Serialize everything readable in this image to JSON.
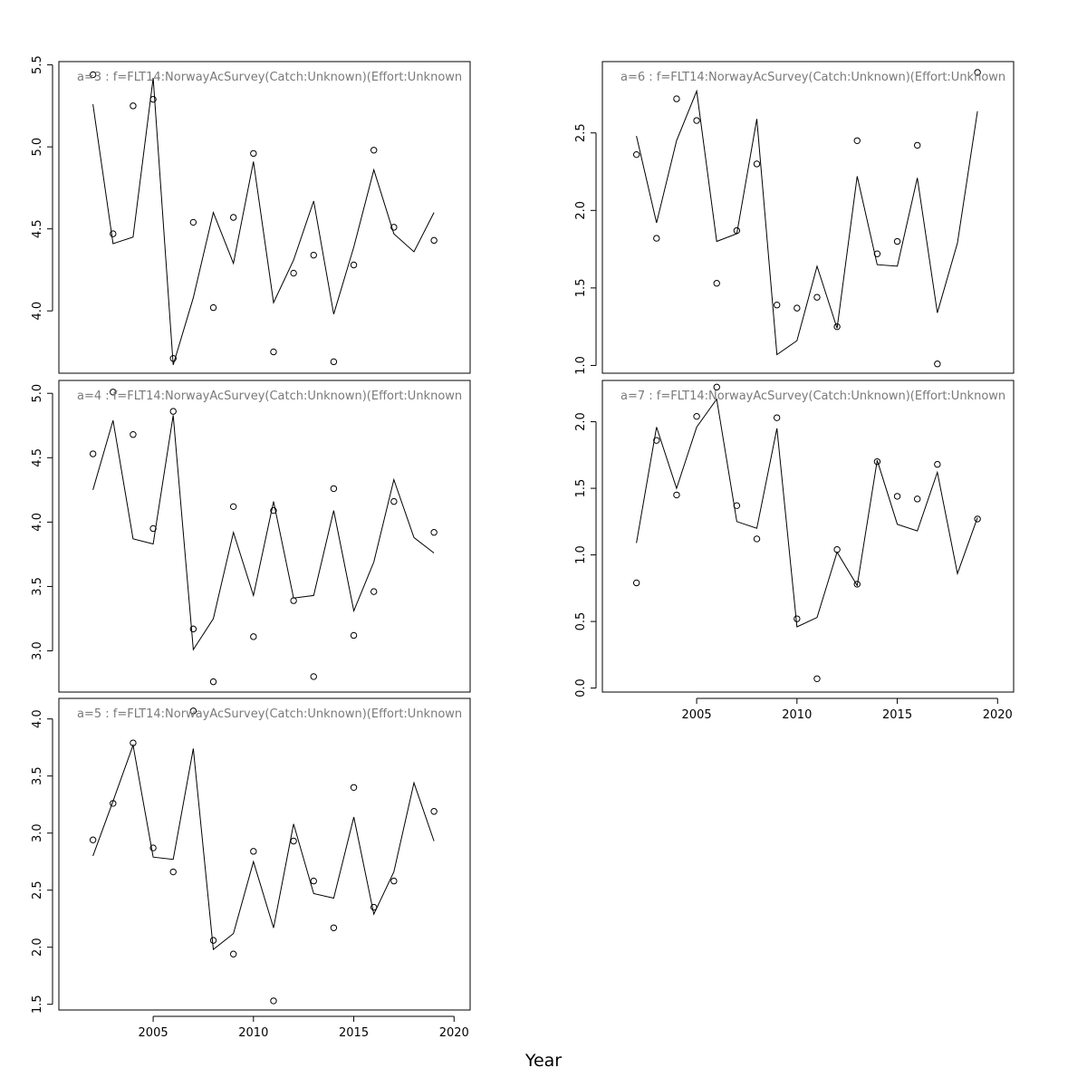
{
  "figure": {
    "xlabel": "Year"
  },
  "chart_data": [
    {
      "type": "line",
      "title": "a=3  :  f=FLT14:NorwayAcSurvey(Catch:Unknown)(Effort:Unknown",
      "xlabel": "Year",
      "xlim": [
        2000.3,
        2020.8
      ],
      "ylim": [
        3.62,
        5.52
      ],
      "yticks": [
        4.0,
        4.5,
        5.0,
        5.5
      ],
      "xticks": [],
      "series": [
        {
          "kind": "line",
          "x": [
            2002,
            2003,
            2004,
            2005,
            2006,
            2007,
            2008,
            2009,
            2010,
            2011,
            2012,
            2013,
            2014,
            2015,
            2016,
            2017,
            2018,
            2019
          ],
          "values": [
            5.26,
            4.41,
            4.45,
            5.42,
            3.67,
            4.08,
            4.6,
            4.29,
            4.91,
            4.05,
            4.31,
            4.67,
            3.98,
            4.39,
            4.86,
            4.47,
            4.36,
            4.6
          ]
        },
        {
          "kind": "points",
          "x": [
            2002,
            2003,
            2004,
            2005,
            2006,
            2007,
            2008,
            2009,
            2010,
            2011,
            2012,
            2013,
            2014,
            2015,
            2016,
            2017,
            2019
          ],
          "values": [
            5.44,
            4.47,
            5.25,
            5.29,
            3.71,
            4.54,
            4.02,
            4.57,
            4.96,
            3.75,
            4.23,
            4.34,
            3.69,
            4.28,
            4.98,
            4.51,
            4.43
          ]
        }
      ]
    },
    {
      "type": "line",
      "title": "a=4  :  f=FLT14:NorwayAcSurvey(Catch:Unknown)(Effort:Unknown",
      "xlabel": "Year",
      "xlim": [
        2000.3,
        2020.8
      ],
      "ylim": [
        2.68,
        5.1
      ],
      "yticks": [
        3.0,
        3.5,
        4.0,
        4.5,
        5.0
      ],
      "xticks": [],
      "series": [
        {
          "kind": "line",
          "x": [
            2002,
            2003,
            2004,
            2005,
            2006,
            2007,
            2008,
            2009,
            2010,
            2011,
            2012,
            2013,
            2014,
            2015,
            2016,
            2017,
            2018,
            2019
          ],
          "values": [
            4.25,
            4.79,
            3.87,
            3.83,
            4.83,
            3.01,
            3.25,
            3.92,
            3.43,
            4.16,
            3.41,
            3.43,
            4.09,
            3.31,
            3.69,
            4.33,
            3.88,
            3.76
          ]
        },
        {
          "kind": "points",
          "x": [
            2002,
            2003,
            2004,
            2005,
            2006,
            2007,
            2008,
            2009,
            2010,
            2011,
            2012,
            2013,
            2014,
            2015,
            2016,
            2017,
            2019
          ],
          "values": [
            4.53,
            5.01,
            4.68,
            3.95,
            4.86,
            3.17,
            2.76,
            4.12,
            3.11,
            4.09,
            3.39,
            2.8,
            4.26,
            3.12,
            3.46,
            4.16,
            3.92
          ]
        }
      ]
    },
    {
      "type": "line",
      "title": "a=5  :  f=FLT14:NorwayAcSurvey(Catch:Unknown)(Effort:Unknown",
      "xlabel": "Year",
      "xlim": [
        2000.3,
        2020.8
      ],
      "ylim": [
        1.45,
        4.18
      ],
      "yticks": [
        1.5,
        2.0,
        2.5,
        3.0,
        3.5,
        4.0
      ],
      "xticks": [
        2005,
        2010,
        2015,
        2020
      ],
      "series": [
        {
          "kind": "line",
          "x": [
            2002,
            2003,
            2004,
            2005,
            2006,
            2007,
            2008,
            2009,
            2010,
            2011,
            2012,
            2013,
            2014,
            2015,
            2016,
            2017,
            2018,
            2019
          ],
          "values": [
            2.8,
            3.28,
            3.77,
            2.79,
            2.77,
            3.74,
            1.98,
            2.12,
            2.75,
            2.17,
            3.08,
            2.47,
            2.43,
            3.14,
            2.29,
            2.66,
            3.44,
            2.93
          ]
        },
        {
          "kind": "points",
          "x": [
            2002,
            2003,
            2004,
            2005,
            2006,
            2007,
            2008,
            2009,
            2010,
            2011,
            2012,
            2013,
            2014,
            2015,
            2016,
            2017,
            2019
          ],
          "values": [
            2.94,
            3.26,
            3.79,
            2.87,
            2.66,
            4.07,
            2.06,
            1.94,
            2.84,
            1.53,
            2.93,
            2.58,
            2.17,
            3.4,
            2.35,
            2.58,
            3.19
          ]
        }
      ]
    },
    {
      "type": "line",
      "title": "a=6  :  f=FLT14:NorwayAcSurvey(Catch:Unknown)(Effort:Unknown",
      "xlabel": "Year",
      "xlim": [
        2000.3,
        2020.8
      ],
      "ylim": [
        0.95,
        2.96
      ],
      "yticks": [
        1.0,
        1.5,
        2.0,
        2.5
      ],
      "xticks": [],
      "series": [
        {
          "kind": "line",
          "x": [
            2002,
            2003,
            2004,
            2005,
            2006,
            2007,
            2008,
            2009,
            2010,
            2011,
            2012,
            2013,
            2014,
            2015,
            2016,
            2017,
            2018,
            2019
          ],
          "values": [
            2.48,
            1.92,
            2.45,
            2.77,
            1.8,
            1.85,
            2.59,
            1.07,
            1.16,
            1.64,
            1.24,
            2.22,
            1.65,
            1.64,
            2.21,
            1.34,
            1.79,
            2.64
          ]
        },
        {
          "kind": "points",
          "x": [
            2002,
            2003,
            2004,
            2005,
            2006,
            2007,
            2008,
            2009,
            2010,
            2011,
            2012,
            2013,
            2014,
            2015,
            2016,
            2017,
            2019
          ],
          "values": [
            2.36,
            1.82,
            2.72,
            2.58,
            1.53,
            1.87,
            2.3,
            1.39,
            1.37,
            1.44,
            1.25,
            2.45,
            1.72,
            1.8,
            2.42,
            1.01,
            2.89
          ]
        }
      ]
    },
    {
      "type": "line",
      "title": "a=7  :  f=FLT14:NorwayAcSurvey(Catch:Unknown)(Effort:Unknown",
      "xlabel": "Year",
      "xlim": [
        2000.3,
        2020.8
      ],
      "ylim": [
        -0.03,
        2.31
      ],
      "yticks": [
        0.0,
        0.5,
        1.0,
        1.5,
        2.0
      ],
      "xticks": [
        2005,
        2010,
        2015,
        2020
      ],
      "series": [
        {
          "kind": "line",
          "x": [
            2002,
            2003,
            2004,
            2005,
            2006,
            2007,
            2008,
            2009,
            2010,
            2011,
            2012,
            2013,
            2014,
            2015,
            2016,
            2017,
            2018,
            2019
          ],
          "values": [
            1.09,
            1.96,
            1.5,
            1.96,
            2.17,
            1.25,
            1.2,
            1.95,
            0.46,
            0.53,
            1.02,
            0.77,
            1.71,
            1.23,
            1.18,
            1.62,
            0.86,
            1.28
          ]
        },
        {
          "kind": "points",
          "x": [
            2002,
            2003,
            2004,
            2005,
            2006,
            2007,
            2008,
            2009,
            2010,
            2011,
            2012,
            2013,
            2014,
            2015,
            2016,
            2017,
            2019
          ],
          "values": [
            0.79,
            1.86,
            1.45,
            2.04,
            2.26,
            1.37,
            1.12,
            2.03,
            0.52,
            0.07,
            1.04,
            0.78,
            1.7,
            1.44,
            1.42,
            1.68,
            1.27
          ]
        }
      ]
    }
  ]
}
